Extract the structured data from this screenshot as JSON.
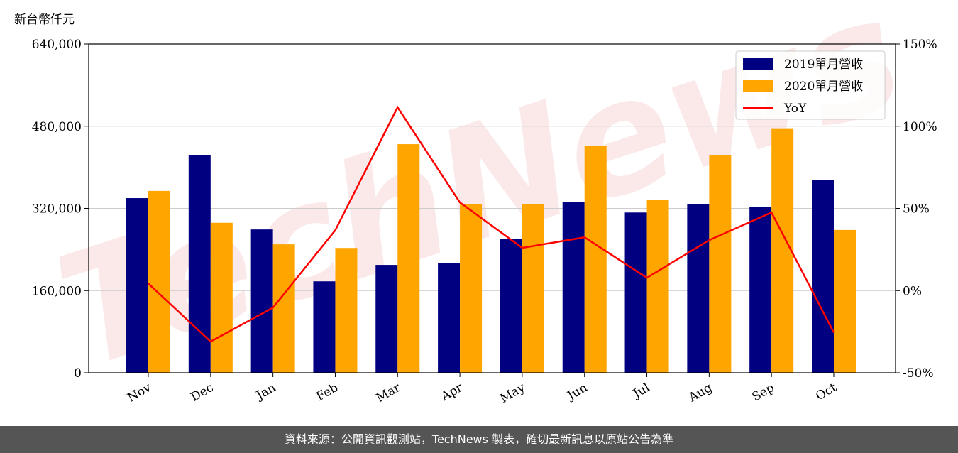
{
  "chart_data": {
    "type": "bar",
    "unit_label": "新台幣仟元",
    "watermark": "TechNews",
    "footer": "資料來源：公開資訊觀測站，TechNews 製表，確切最新訊息以原站公告為準",
    "categories": [
      "Nov",
      "Dec",
      "Jan",
      "Feb",
      "Mar",
      "Apr",
      "May",
      "Jun",
      "Jul",
      "Aug",
      "Sep",
      "Oct"
    ],
    "series": [
      {
        "name": "2019單月營收",
        "color": "#000080",
        "type": "bar",
        "values": [
          340000,
          423000,
          279000,
          178000,
          210000,
          214000,
          261000,
          333000,
          312000,
          328000,
          323000,
          376000
        ]
      },
      {
        "name": "2020單月營收",
        "color": "#ffa500",
        "type": "bar",
        "values": [
          354000,
          292000,
          250000,
          243000,
          445000,
          328000,
          329000,
          441000,
          336000,
          423000,
          476000,
          278000
        ]
      },
      {
        "name": "YoY",
        "color": "#ff0000",
        "type": "line",
        "axis": "y2",
        "values": [
          4.3,
          -31,
          -10.4,
          36.7,
          111.5,
          53.6,
          26,
          32.4,
          7.8,
          30.7,
          47.5,
          -25.5
        ]
      }
    ],
    "ylim": [
      0,
      640000
    ],
    "yticks": [
      0,
      {
        "value": 160000,
        "label": "160,000"
      },
      {
        "value": 320000,
        "label": "320,000"
      },
      {
        "value": 480000,
        "label": "480,000"
      },
      {
        "value": 640000,
        "label": "640,000"
      }
    ],
    "y2lim": [
      -50,
      150
    ],
    "y2ticks": [
      {
        "value": -50,
        "label": "-50%"
      },
      {
        "value": 0,
        "label": "0%"
      },
      {
        "value": 50,
        "label": "50%"
      },
      {
        "value": 100,
        "label": "100%"
      },
      {
        "value": 150,
        "label": "150%"
      }
    ],
    "grid": true,
    "legend": "upper right"
  }
}
